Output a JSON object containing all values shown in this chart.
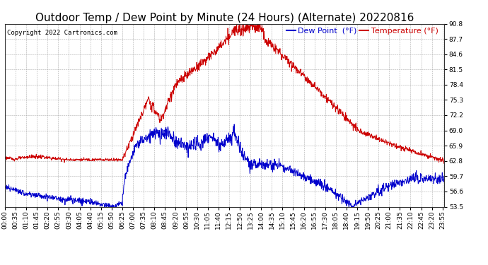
{
  "title": "Outdoor Temp / Dew Point by Minute (24 Hours) (Alternate) 20220816",
  "copyright": "Copyright 2022 Cartronics.com",
  "legend_dew": "Dew Point  (°F)",
  "legend_temp": "Temperature (°F)",
  "dew_color": "#0000cc",
  "temp_color": "#cc0000",
  "background_color": "#ffffff",
  "grid_color": "#999999",
  "yticks": [
    53.5,
    56.6,
    59.7,
    62.8,
    65.9,
    69.0,
    72.2,
    75.3,
    78.4,
    81.5,
    84.6,
    87.7,
    90.8
  ],
  "ylim": [
    53.5,
    90.8
  ],
  "title_fontsize": 11,
  "tick_fontsize": 6.5,
  "legend_fontsize": 8,
  "copyright_fontsize": 6.5,
  "xtick_step": 35
}
